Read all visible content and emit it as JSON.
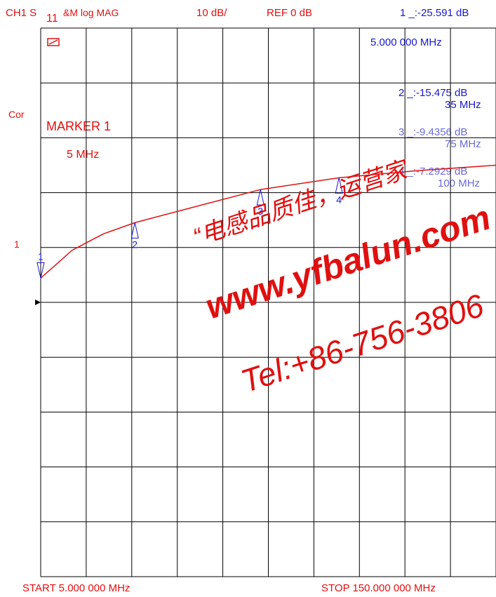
{
  "header": {
    "channel": "CH1 S",
    "subscript": "11",
    "format": "&M  log MAG",
    "scale": "10 dB/",
    "reference": "REF 0 dB",
    "active_marker": "1  _:-25.591 dB"
  },
  "left_annotations": {
    "corrected": "Cor",
    "channel_number": "1",
    "cal_icon": "calibration-glyph-icon",
    "ref_arrow": "reference-pointer-icon"
  },
  "marker_box": {
    "title": "MARKER 1",
    "value": "5 MHz"
  },
  "marker_list": [
    {
      "id": "1",
      "line1": "5.000 000 MHz",
      "line2": ""
    },
    {
      "id": "2",
      "line1": "2 _:-15.475 dB",
      "line2": "35 MHz"
    },
    {
      "id": "3",
      "line1": "3 _:-9.4356 dB",
      "line2": "75 MHz"
    },
    {
      "id": "4",
      "line1": "4 _:-7.2929 dB",
      "line2": "100 MHz"
    }
  ],
  "markers_on_trace": [
    "1",
    "2",
    "3",
    "4"
  ],
  "footer": {
    "start": "START   5.000 000 MHz",
    "stop": "STOP  150.000 000 MHz"
  },
  "watermark": {
    "line1": "“电感品质佳，运营家",
    "line2": "www.yfbalun.com",
    "line3": "Tel:+86-756-3806"
  },
  "colors": {
    "trace": "#e01010",
    "grid": "#000000",
    "marker_text": "#1818d0",
    "annotation": "#e01010",
    "watermark": "#e01010"
  },
  "chart_data": {
    "type": "line",
    "title": "",
    "xlabel": "",
    "ylabel": "",
    "scale_db_per_div": 10,
    "ref_db": 0,
    "xlim": [
      5,
      150
    ],
    "ylim": [
      -80,
      20
    ],
    "grid": true,
    "series": [
      {
        "x": [
          5,
          15,
          25,
          35,
          50,
          75,
          100,
          125,
          150
        ],
        "y": [
          -25.591,
          -20.5,
          -17.5,
          -15.475,
          -13.2,
          -9.4356,
          -7.2929,
          -6.0,
          -5.0
        ]
      }
    ],
    "markers": [
      {
        "label": "1",
        "x": 5,
        "y": -25.591
      },
      {
        "label": "2",
        "x": 35,
        "y": -15.475
      },
      {
        "label": "3",
        "x": 75,
        "y": -9.4356
      },
      {
        "label": "4",
        "x": 100,
        "y": -7.2929
      }
    ]
  }
}
